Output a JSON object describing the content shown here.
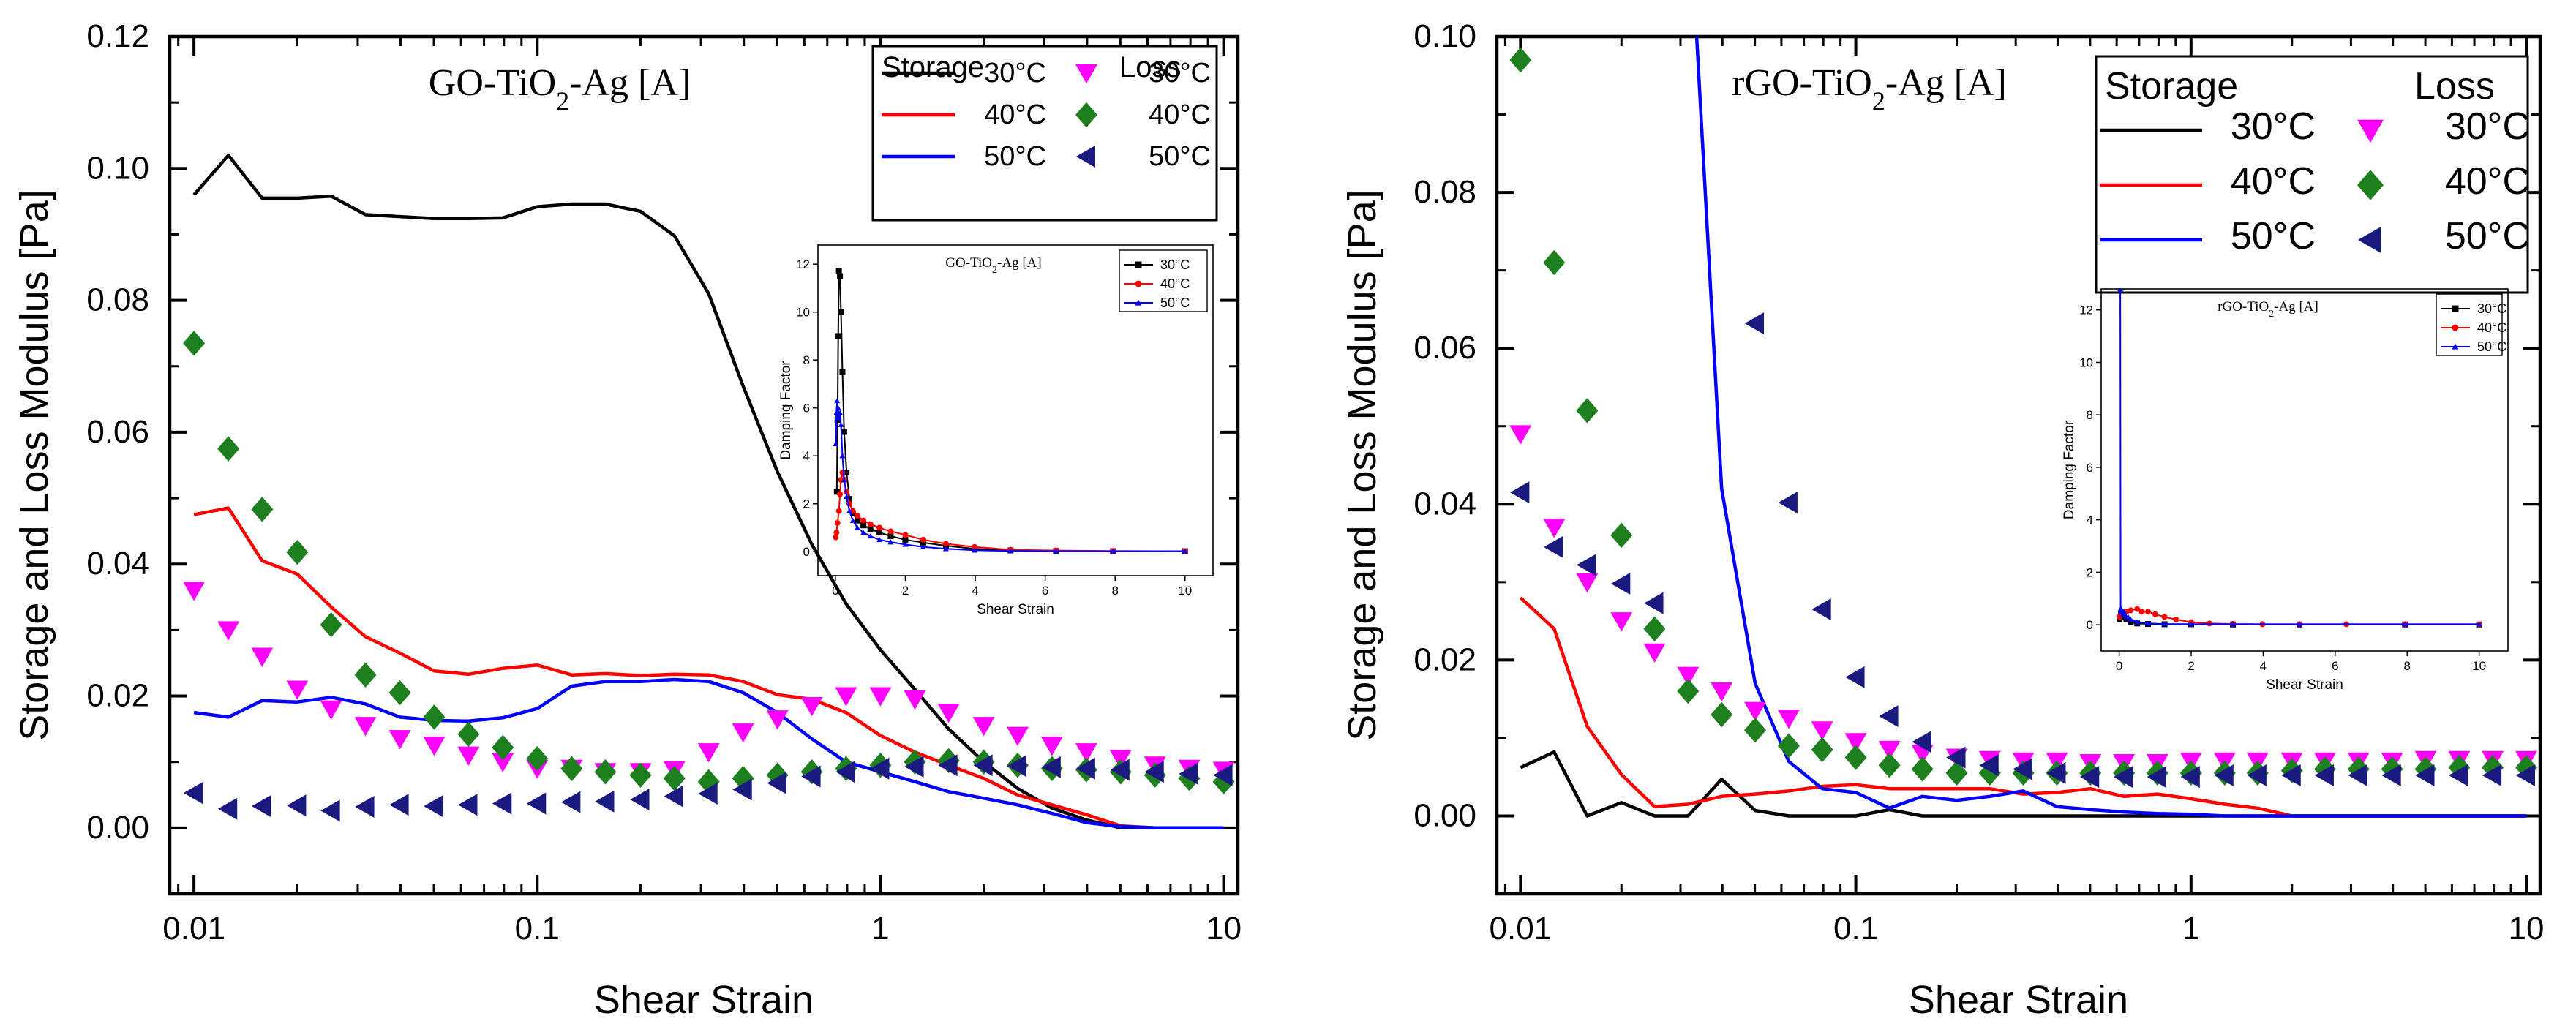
{
  "chart_data": [
    {
      "type": "line",
      "id": "A",
      "title": "GO-TiO₂-Ag [A]",
      "title_parts": {
        "prefix": "GO-TiO",
        "subscript": "2",
        "suffix": "-Ag [A]"
      },
      "xlabel": "Shear Strain",
      "ylabel": "Storage and Loss Modulus [Pa]",
      "xscale": "log",
      "xlim": [
        0.0085,
        11
      ],
      "ylim": [
        -0.01,
        0.12
      ],
      "x_ticks": [
        {
          "value": 0.01,
          "label": "0.01"
        },
        {
          "value": 0.1,
          "label": "0.1"
        },
        {
          "value": 1,
          "label": "1"
        },
        {
          "value": 10,
          "label": "10"
        }
      ],
      "y_ticks": [
        {
          "value": 0.0,
          "label": "0.00"
        },
        {
          "value": 0.02,
          "label": "0.02"
        },
        {
          "value": 0.04,
          "label": "0.04"
        },
        {
          "value": 0.06,
          "label": "0.06"
        },
        {
          "value": 0.08,
          "label": "0.08"
        },
        {
          "value": 0.1,
          "label": "0.10"
        },
        {
          "value": 0.12,
          "label": "0.12"
        }
      ],
      "x": [
        0.01,
        0.0126,
        0.0158,
        0.02,
        0.0251,
        0.0316,
        0.0398,
        0.0501,
        0.0631,
        0.0794,
        0.1,
        0.126,
        0.158,
        0.2,
        0.251,
        0.316,
        0.398,
        0.501,
        0.631,
        0.794,
        1,
        1.26,
        1.58,
        2,
        2.51,
        3.16,
        3.98,
        5.01,
        6.31,
        7.94,
        10
      ],
      "legend": {
        "position": "top-right",
        "storage_heading": "Storage",
        "loss_heading": "Loss"
      },
      "storage": [
        {
          "name": "30°C",
          "color": "#000000",
          "values": [
            0.096,
            0.102,
            0.0955,
            0.0955,
            0.0958,
            0.093,
            0.0927,
            0.0924,
            0.0924,
            0.0925,
            0.0942,
            0.0946,
            0.0946,
            0.0935,
            0.0898,
            0.081,
            0.067,
            0.054,
            0.043,
            0.034,
            0.027,
            0.021,
            0.015,
            0.01,
            0.006,
            0.003,
            0.0012,
            0.0,
            0.0,
            0.0,
            0.0
          ]
        },
        {
          "name": "40°C",
          "color": "#ff0000",
          "values": [
            0.0475,
            0.0485,
            0.0405,
            0.0385,
            0.0335,
            0.029,
            0.0265,
            0.0238,
            0.0233,
            0.0242,
            0.0247,
            0.0232,
            0.0234,
            0.0231,
            0.0233,
            0.0232,
            0.0222,
            0.0202,
            0.0195,
            0.0175,
            0.014,
            0.0115,
            0.0095,
            0.0075,
            0.005,
            0.0035,
            0.002,
            0.0003,
            0.0,
            0.0,
            0.0
          ]
        },
        {
          "name": "50°C",
          "color": "#0000ff",
          "values": [
            0.0175,
            0.0168,
            0.0193,
            0.0191,
            0.0198,
            0.0188,
            0.0168,
            0.0163,
            0.0162,
            0.0167,
            0.0181,
            0.0215,
            0.0222,
            0.0222,
            0.0225,
            0.0222,
            0.0205,
            0.0175,
            0.0135,
            0.01,
            0.0085,
            0.007,
            0.0055,
            0.0045,
            0.0035,
            0.0022,
            0.0008,
            0.0002,
            0.0,
            0.0,
            0.0
          ]
        }
      ],
      "loss": [
        {
          "name": "30°C",
          "color": "#ff00ff",
          "marker": "triangle-down",
          "values": [
            0.036,
            0.03,
            0.026,
            0.021,
            0.018,
            0.0155,
            0.0135,
            0.0125,
            0.011,
            0.01,
            0.009,
            0.009,
            0.0085,
            0.0085,
            0.0088,
            0.0115,
            0.0145,
            0.0165,
            0.0185,
            0.02,
            0.02,
            0.0195,
            0.0175,
            0.0155,
            0.014,
            0.0125,
            0.0115,
            0.0105,
            0.0095,
            0.009,
            0.0087
          ]
        },
        {
          "name": "40°C",
          "color": "#1e7f1e",
          "marker": "diamond",
          "values": [
            0.0735,
            0.0575,
            0.0483,
            0.0418,
            0.0308,
            0.0232,
            0.0205,
            0.0168,
            0.0142,
            0.0122,
            0.0105,
            0.009,
            0.0085,
            0.008,
            0.0075,
            0.007,
            0.0075,
            0.008,
            0.0085,
            0.009,
            0.0095,
            0.01,
            0.0102,
            0.01,
            0.0095,
            0.009,
            0.0088,
            0.0085,
            0.008,
            0.0075,
            0.007
          ]
        },
        {
          "name": "50°C",
          "color": "#1a1a80",
          "marker": "triangle-left",
          "values": [
            0.0053,
            0.0029,
            0.0033,
            0.0034,
            0.0026,
            0.0032,
            0.0035,
            0.0033,
            0.0035,
            0.0037,
            0.0037,
            0.0039,
            0.004,
            0.0043,
            0.0048,
            0.0052,
            0.0058,
            0.0068,
            0.0078,
            0.0085,
            0.009,
            0.0093,
            0.0095,
            0.0095,
            0.0094,
            0.0092,
            0.009,
            0.0088,
            0.0085,
            0.0082,
            0.008
          ]
        }
      ],
      "inset": {
        "title_parts": {
          "prefix": "GO-TiO",
          "subscript": "2",
          "suffix": "-Ag [A]"
        },
        "xlabel": "Shear Strain",
        "ylabel": "Damping Factor",
        "xlim": [
          -0.5,
          10.8
        ],
        "ylim": [
          -1,
          12.8
        ],
        "x_ticks": [
          0,
          2,
          4,
          6,
          8,
          10
        ],
        "y_ticks": [
          0,
          2,
          4,
          6,
          8,
          10,
          12
        ],
        "legend_position": "top-right",
        "series": [
          {
            "name": "30°C",
            "color": "#000000",
            "marker": "square",
            "x": [
              0.04,
              0.06,
              0.08,
              0.1,
              0.13,
              0.16,
              0.2,
              0.25,
              0.32,
              0.4,
              0.5,
              0.63,
              0.8,
              1.0,
              1.26,
              1.58,
              2.0,
              2.51,
              3.16,
              3.98,
              5.01,
              6.31,
              7.94,
              10
            ],
            "y": [
              2.5,
              5.5,
              9.0,
              11.7,
              11.5,
              10.0,
              7.5,
              5.0,
              3.3,
              2.2,
              1.6,
              1.3,
              1.1,
              0.95,
              0.8,
              0.65,
              0.5,
              0.38,
              0.25,
              0.12,
              0.05,
              0.03,
              0.02,
              0.02
            ]
          },
          {
            "name": "40°C",
            "color": "#ff0000",
            "marker": "circle",
            "x": [
              0.01,
              0.03,
              0.06,
              0.1,
              0.13,
              0.16,
              0.2,
              0.25,
              0.32,
              0.4,
              0.5,
              0.63,
              0.8,
              1.0,
              1.26,
              1.58,
              2.0,
              2.51,
              3.16,
              3.98,
              5.01,
              6.31,
              7.94,
              10
            ],
            "y": [
              0.6,
              0.8,
              1.2,
              1.7,
              2.4,
              3.0,
              3.3,
              3.0,
              2.5,
              2.0,
              1.7,
              1.5,
              1.3,
              1.15,
              1.0,
              0.85,
              0.7,
              0.5,
              0.33,
              0.2,
              0.08,
              0.05,
              0.03,
              0.02
            ]
          },
          {
            "name": "50°C",
            "color": "#0000ff",
            "marker": "triangle-up",
            "x": [
              0.01,
              0.03,
              0.05,
              0.08,
              0.1,
              0.13,
              0.16,
              0.2,
              0.25,
              0.32,
              0.4,
              0.5,
              0.63,
              0.8,
              1.0,
              1.26,
              1.58,
              2.0,
              2.51,
              3.16,
              3.98,
              5.01,
              6.31,
              7.94,
              10
            ],
            "y": [
              4.5,
              5.8,
              6.3,
              6.0,
              5.6,
              5.8,
              5.3,
              4.0,
              3.0,
              2.3,
              1.7,
              1.3,
              1.0,
              0.8,
              0.65,
              0.5,
              0.4,
              0.3,
              0.2,
              0.12,
              0.06,
              0.03,
              0.02,
              0.02,
              0.02
            ]
          }
        ]
      }
    },
    {
      "type": "line",
      "id": "B",
      "title": "rGO-TiO₂-Ag [A]",
      "title_parts": {
        "prefix": "rGO-TiO",
        "subscript": "2",
        "suffix": "-Ag [A]"
      },
      "xlabel": "Shear Strain",
      "ylabel": "Storage and Loss Modulus [Pa]",
      "xscale": "log",
      "xlim": [
        0.0085,
        11
      ],
      "ylim": [
        -0.01,
        0.1
      ],
      "x_ticks": [
        {
          "value": 0.01,
          "label": "0.01"
        },
        {
          "value": 0.1,
          "label": "0.1"
        },
        {
          "value": 1,
          "label": "1"
        },
        {
          "value": 10,
          "label": "10"
        }
      ],
      "y_ticks": [
        {
          "value": 0.0,
          "label": "0.00"
        },
        {
          "value": 0.02,
          "label": "0.02"
        },
        {
          "value": 0.04,
          "label": "0.04"
        },
        {
          "value": 0.06,
          "label": "0.06"
        },
        {
          "value": 0.08,
          "label": "0.08"
        },
        {
          "value": 0.1,
          "label": "0.10"
        }
      ],
      "x": [
        0.01,
        0.0126,
        0.0158,
        0.02,
        0.0251,
        0.0316,
        0.0398,
        0.0501,
        0.0631,
        0.0794,
        0.1,
        0.126,
        0.158,
        0.2,
        0.251,
        0.316,
        0.398,
        0.501,
        0.631,
        0.794,
        1,
        1.26,
        1.58,
        2,
        2.51,
        3.16,
        3.98,
        5.01,
        6.31,
        7.94,
        10
      ],
      "legend": {
        "position": "top-right",
        "storage_heading": "Storage",
        "loss_heading": "Loss"
      },
      "storage": [
        {
          "name": "30°C",
          "color": "#000000",
          "values": [
            0.0062,
            0.0082,
            0.0,
            0.0017,
            0.0,
            0.0,
            0.0047,
            0.0007,
            0.0,
            0.0,
            0.0,
            0.0008,
            0.0,
            0.0,
            0.0,
            0.0,
            0.0,
            0.0,
            0.0,
            0.0,
            0.0,
            0.0,
            0.0,
            0.0,
            0.0,
            0.0,
            0.0,
            0.0,
            0.0,
            0.0,
            0.0
          ]
        },
        {
          "name": "40°C",
          "color": "#ff0000",
          "values": [
            0.028,
            0.024,
            0.0115,
            0.0053,
            0.0012,
            0.0015,
            0.0025,
            0.0028,
            0.0032,
            0.0038,
            0.004,
            0.0035,
            0.0035,
            0.0035,
            0.0035,
            0.0028,
            0.003,
            0.0035,
            0.0025,
            0.0028,
            0.0022,
            0.0015,
            0.001,
            0.0,
            0.0,
            0.0,
            0.0,
            0.0,
            0.0,
            0.0,
            0.0
          ]
        },
        {
          "name": "50°C",
          "color": "#0000ff",
          "values": [
            null,
            null,
            null,
            null,
            null,
            0.12,
            0.042,
            0.017,
            0.007,
            0.0035,
            0.003,
            0.001,
            0.0025,
            0.002,
            0.0025,
            0.0032,
            0.0012,
            0.0008,
            0.0005,
            0.0003,
            0.0002,
            0.0,
            0.0,
            0.0,
            0.0,
            0.0,
            0.0,
            0.0,
            0.0,
            0.0,
            0.0
          ]
        }
      ],
      "loss": [
        {
          "name": "30°C",
          "color": "#ff00ff",
          "marker": "triangle-down",
          "values": [
            0.049,
            0.037,
            0.03,
            0.025,
            0.021,
            0.018,
            0.016,
            0.0135,
            0.0125,
            0.011,
            0.0095,
            0.0085,
            0.008,
            0.0075,
            0.0072,
            0.007,
            0.007,
            0.0068,
            0.0068,
            0.0068,
            0.007,
            0.007,
            0.007,
            0.007,
            0.007,
            0.007,
            0.007,
            0.0072,
            0.0072,
            0.0072,
            0.0072
          ]
        },
        {
          "name": "40°C",
          "color": "#1e7f1e",
          "marker": "diamond",
          "values": [
            0.097,
            0.071,
            0.052,
            0.036,
            0.024,
            0.016,
            0.013,
            0.011,
            0.009,
            0.0085,
            0.0075,
            0.0065,
            0.006,
            0.0055,
            0.0055,
            0.0055,
            0.0055,
            0.0055,
            0.0055,
            0.0055,
            0.0055,
            0.0055,
            0.0055,
            0.0058,
            0.006,
            0.006,
            0.006,
            0.006,
            0.0062,
            0.0062,
            0.0062
          ]
        },
        {
          "name": "50°C",
          "color": "#1a1a80",
          "marker": "triangle-left",
          "values": [
            0.0415,
            0.0345,
            0.0322,
            0.0298,
            0.0273,
            null,
            null,
            0.0632,
            0.0402,
            0.0265,
            0.0178,
            0.0128,
            0.0095,
            0.0075,
            0.0065,
            0.006,
            0.0055,
            0.005,
            0.005,
            0.005,
            0.005,
            0.0052,
            0.0052,
            0.0052,
            0.0052,
            0.0052,
            0.0052,
            0.0052,
            0.0052,
            0.0052,
            0.0052
          ]
        }
      ],
      "inset": {
        "title_parts": {
          "prefix": "rGO-TiO",
          "subscript": "2",
          "suffix": "-Ag [A]"
        },
        "xlabel": "Shear Strain",
        "ylabel": "Damping Factor",
        "xlim": [
          -0.5,
          10.8
        ],
        "ylim": [
          -1,
          12.8
        ],
        "x_ticks": [
          0,
          2,
          4,
          6,
          8,
          10
        ],
        "y_ticks": [
          0,
          2,
          4,
          6,
          8,
          10,
          12
        ],
        "legend_position": "top-right",
        "series": [
          {
            "name": "30°C",
            "color": "#000000",
            "marker": "square",
            "x": [
              0.01,
              0.05,
              0.1,
              0.2,
              0.32,
              0.5,
              0.8,
              1.26,
              2.0,
              3.16,
              5.01,
              7.94,
              10
            ],
            "y": [
              0.2,
              0.4,
              0.3,
              0.2,
              0.1,
              0.05,
              0.03,
              0.02,
              0.02,
              0.01,
              0.01,
              0.01,
              0.01
            ]
          },
          {
            "name": "40°C",
            "color": "#ff0000",
            "marker": "circle",
            "x": [
              0.01,
              0.05,
              0.1,
              0.2,
              0.32,
              0.5,
              0.63,
              0.8,
              1.0,
              1.26,
              1.58,
              2.0,
              2.51,
              3.16,
              3.98,
              5.01,
              6.31,
              7.94,
              10
            ],
            "y": [
              0.3,
              0.4,
              0.45,
              0.5,
              0.55,
              0.6,
              0.5,
              0.5,
              0.4,
              0.3,
              0.2,
              0.1,
              0.05,
              0.03,
              0.02,
              0.02,
              0.02,
              0.02,
              0.02
            ]
          },
          {
            "name": "50°C",
            "color": "#0000ff",
            "marker": "triangle-up",
            "x": [
              0.03,
              0.04,
              0.05,
              0.06,
              0.08,
              0.1,
              0.13,
              0.16,
              0.2,
              0.25,
              0.32,
              0.5,
              0.8,
              1.26,
              2.0,
              3.16,
              5.01,
              7.94,
              10
            ],
            "y": [
              12.8,
              0.6,
              0.5,
              0.6,
              0.5,
              0.4,
              0.5,
              0.4,
              0.3,
              0.3,
              0.2,
              0.1,
              0.05,
              0.03,
              0.02,
              0.02,
              0.02,
              0.02,
              0.02
            ]
          }
        ]
      }
    }
  ]
}
